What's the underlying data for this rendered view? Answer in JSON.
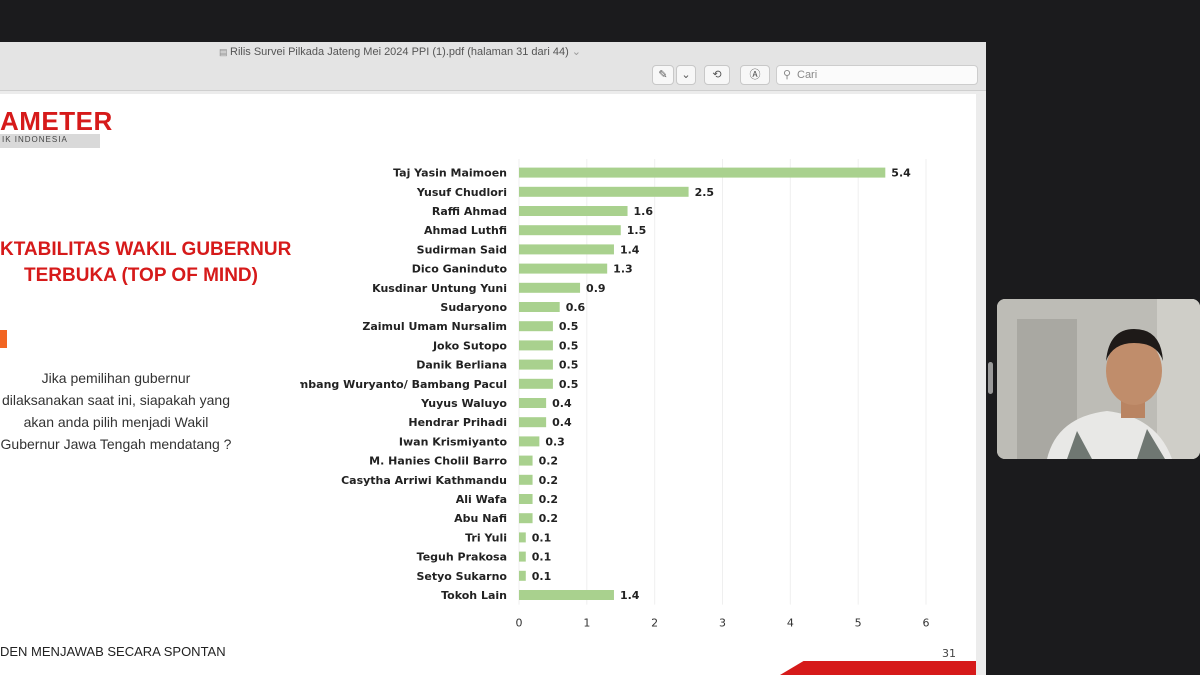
{
  "window": {
    "title": "Rilis Survei Pilkada Jateng Mei 2024 PPI (1).pdf (halaman 31 dari 44)",
    "search_placeholder": "Cari"
  },
  "slide": {
    "logo_text": "AMETER",
    "logo_subtext": "IK INDONESIA",
    "heading_line1": "KTABILITAS WAKIL GUBERNUR",
    "heading_line2": "TERBUKA (TOP OF MIND)",
    "question": "Jika pemilihan gubernur dilaksanakan saat ini, siapakah yang akan anda pilih menjadi Wakil Gubernur Jawa Tengah mendatang ?",
    "footer_note": "DEN MENJAWAB SECARA SPONTAN",
    "page_number": "31",
    "brand_color": "#d61a1a"
  },
  "chart_data": {
    "type": "bar",
    "orientation": "horizontal",
    "categories": [
      "Taj Yasin Maimoen",
      "Yusuf Chudlori",
      "Raffi Ahmad",
      "Ahmad Luthfi",
      "Sudirman Said",
      "Dico Ganinduto",
      "Kusdinar Untung Yuni",
      "Sudaryono",
      "Zaimul Umam Nursalim",
      "Joko Sutopo",
      "Danik Berliana",
      "Bambang Wuryanto/ Bambang Pacul",
      "Yuyus Waluyo",
      "Hendrar Prihadi",
      "Iwan Krismiyanto",
      "M. Hanies Cholil Barro",
      "Casytha Arriwi Kathmandu",
      "Ali Wafa",
      "Abu Nafi",
      "Tri Yuli",
      "Teguh Prakosa",
      "Setyo Sukarno",
      "Tokoh Lain"
    ],
    "values": [
      5.4,
      2.5,
      1.6,
      1.5,
      1.4,
      1.3,
      0.9,
      0.6,
      0.5,
      0.5,
      0.5,
      0.5,
      0.4,
      0.4,
      0.3,
      0.2,
      0.2,
      0.2,
      0.2,
      0.1,
      0.1,
      0.1,
      1.4
    ],
    "value_labels": [
      "5.4",
      "2.5",
      "1.6",
      "1.5",
      "1.4",
      "1.3",
      "0.9",
      "0.6",
      "0.5",
      "0.5",
      "0.5",
      "0.5",
      "0.4",
      "0.4",
      "0.3",
      "0.2",
      "0.2",
      "0.2",
      "0.2",
      "0.1",
      "0.1",
      "0.1",
      "1.4"
    ],
    "xlim": [
      0,
      6
    ],
    "xticks": [
      "0",
      "1",
      "2",
      "3",
      "4",
      "5",
      "6"
    ],
    "bar_color": "#a9d18e",
    "grid": "vertical"
  }
}
